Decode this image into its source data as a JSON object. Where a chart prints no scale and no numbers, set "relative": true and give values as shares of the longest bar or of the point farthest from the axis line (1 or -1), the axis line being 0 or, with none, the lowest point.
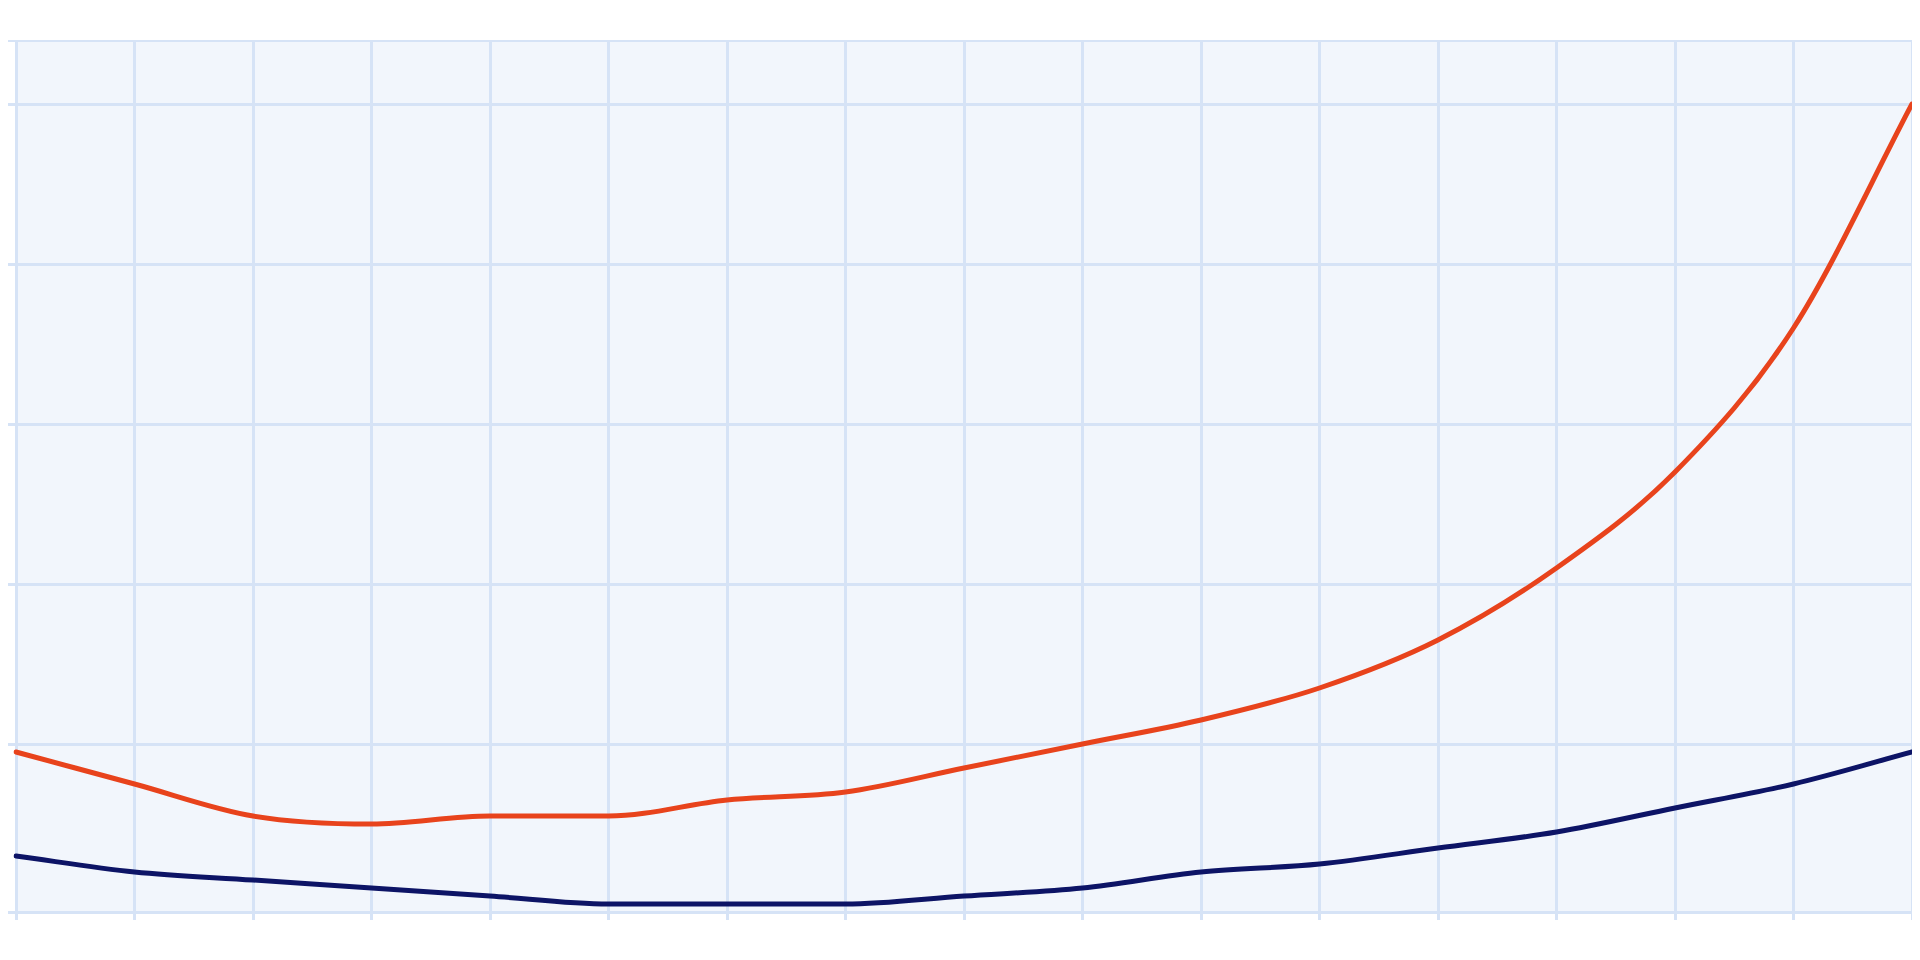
{
  "chart_data": {
    "type": "line",
    "relative": true,
    "grid": true,
    "marker": "none",
    "line_style": "solid",
    "legend": false,
    "categories": [
      null,
      null,
      null,
      null,
      null,
      null,
      null,
      null,
      null,
      null,
      null,
      null,
      null,
      null,
      null,
      null,
      null
    ],
    "series": [
      {
        "color": "#e8431c",
        "values": [
          0.19,
          0.15,
          0.11,
          0.1,
          0.11,
          0.11,
          0.13,
          0.14,
          0.17,
          0.2,
          0.23,
          0.27,
          0.33,
          0.42,
          0.54,
          0.72,
          1.0
        ]
      },
      {
        "color": "#0d1466",
        "values": [
          0.06,
          0.04,
          0.03,
          0.02,
          0.01,
          0.0,
          0.0,
          0.0,
          0.01,
          0.02,
          0.04,
          0.05,
          0.07,
          0.09,
          0.12,
          0.15,
          0.19
        ]
      }
    ]
  }
}
